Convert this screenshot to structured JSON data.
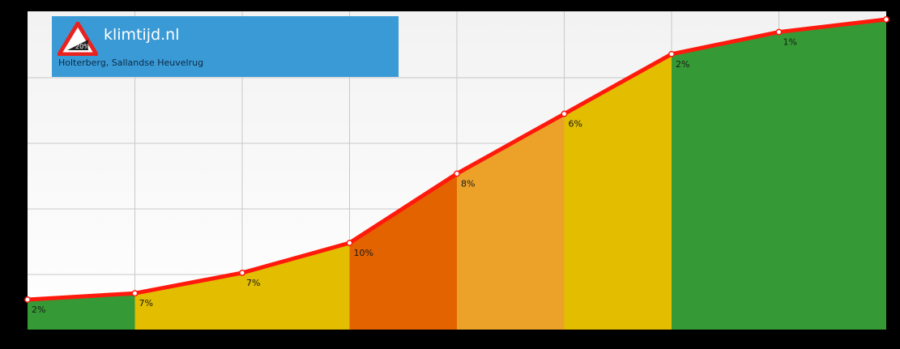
{
  "brand": {
    "name": "klimtijd.nl",
    "location": "Holterberg, Sallandse Heuvelrug",
    "logo_text": "20%",
    "colors": {
      "background": "#3a9ad6",
      "triangle": "#e8231f"
    }
  },
  "chart_data": {
    "type": "area",
    "title": "",
    "xlabel": "",
    "ylabel": "",
    "grid": true,
    "legend": "none",
    "x": [
      0,
      1,
      2,
      3,
      4,
      5,
      6,
      7,
      8
    ],
    "y": [
      0,
      2,
      8.5,
      18,
      40,
      59,
      78,
      85,
      89
    ],
    "segments": [
      {
        "grade": "2%",
        "color": "#359a35"
      },
      {
        "grade": "7%",
        "color": "#e2bd00"
      },
      {
        "grade": "7%",
        "color": "#e2bd00"
      },
      {
        "grade": "10%",
        "color": "#e36300"
      },
      {
        "grade": "8%",
        "color": "#eca229"
      },
      {
        "grade": "6%",
        "color": "#e2bd00"
      },
      {
        "grade": "2%",
        "color": "#359a35"
      },
      {
        "grade": "1%",
        "color": "#359a35"
      }
    ],
    "line_color": "#ff1a0d",
    "grid_color": "#c8c8c8"
  }
}
